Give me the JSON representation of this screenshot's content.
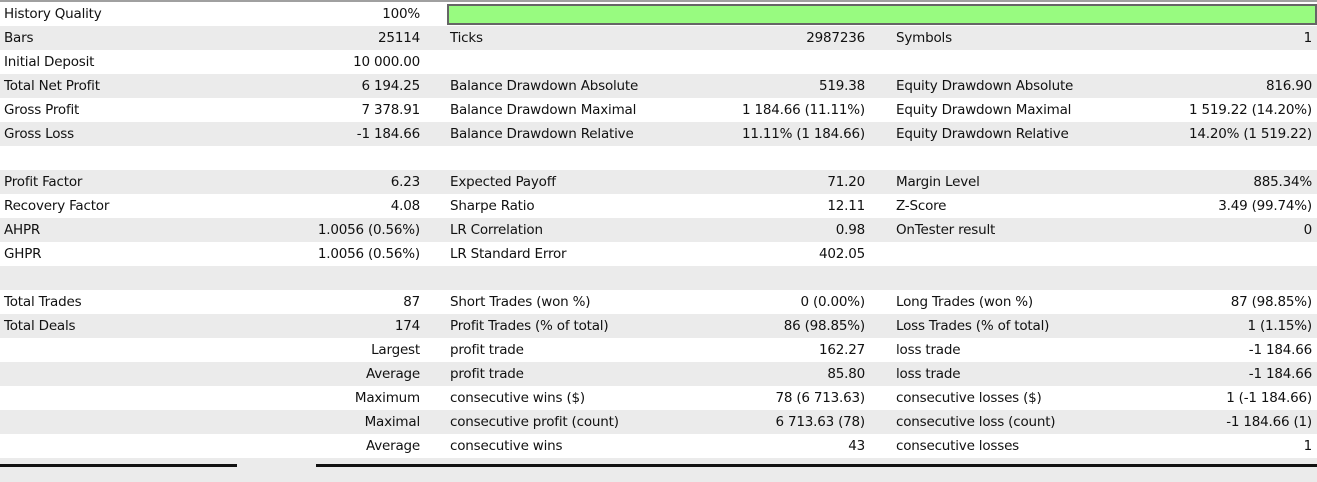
{
  "history_quality": {
    "label": "History Quality",
    "value": "100%",
    "fill_percent": 100,
    "bar_color": "#98fb80"
  },
  "rows": [
    {
      "l1": "Bars",
      "v1": "25114",
      "l2": "Ticks",
      "v2": "2987236",
      "l3": "Symbols",
      "v3": "1"
    },
    {
      "l1": "Initial Deposit",
      "v1": "10 000.00",
      "l2": "",
      "v2": "",
      "l3": "",
      "v3": ""
    },
    {
      "l1": "Total Net Profit",
      "v1": "6 194.25",
      "l2": "Balance Drawdown Absolute",
      "v2": "519.38",
      "l3": "Equity Drawdown Absolute",
      "v3": "816.90"
    },
    {
      "l1": "Gross Profit",
      "v1": "7 378.91",
      "l2": "Balance Drawdown Maximal",
      "v2": "1 184.66 (11.11%)",
      "l3": "Equity Drawdown Maximal",
      "v3": "1 519.22 (14.20%)"
    },
    {
      "l1": "Gross Loss",
      "v1": "-1 184.66",
      "l2": "Balance Drawdown Relative",
      "v2": "11.11% (1 184.66)",
      "l3": "Equity Drawdown Relative",
      "v3": "14.20% (1 519.22)"
    },
    {
      "l1": "",
      "v1": "",
      "l2": "",
      "v2": "",
      "l3": "",
      "v3": ""
    },
    {
      "l1": "Profit Factor",
      "v1": "6.23",
      "l2": "Expected Payoff",
      "v2": "71.20",
      "l3": "Margin Level",
      "v3": "885.34%"
    },
    {
      "l1": "Recovery Factor",
      "v1": "4.08",
      "l2": "Sharpe Ratio",
      "v2": "12.11",
      "l3": "Z-Score",
      "v3": "3.49 (99.74%)"
    },
    {
      "l1": "AHPR",
      "v1": "1.0056 (0.56%)",
      "l2": "LR Correlation",
      "v2": "0.98",
      "l3": "OnTester result",
      "v3": "0"
    },
    {
      "l1": "GHPR",
      "v1": "1.0056 (0.56%)",
      "l2": "LR Standard Error",
      "v2": "402.05",
      "l3": "",
      "v3": ""
    },
    {
      "l1": "",
      "v1": "",
      "l2": "",
      "v2": "",
      "l3": "",
      "v3": ""
    },
    {
      "l1": "Total Trades",
      "v1": "87",
      "l2": "Short Trades (won %)",
      "v2": "0 (0.00%)",
      "l3": "Long Trades (won %)",
      "v3": "87 (98.85%)"
    },
    {
      "l1": "Total Deals",
      "v1": "174",
      "l2": "Profit Trades (% of total)",
      "v2": "86 (98.85%)",
      "l3": "Loss Trades (% of total)",
      "v3": "1 (1.15%)"
    },
    {
      "l1": "",
      "v1": "Largest",
      "l2": "profit trade",
      "v2": "162.27",
      "l3": "loss trade",
      "v3": "-1 184.66"
    },
    {
      "l1": "",
      "v1": "Average",
      "l2": "profit trade",
      "v2": "85.80",
      "l3": "loss trade",
      "v3": "-1 184.66"
    },
    {
      "l1": "",
      "v1": "Maximum",
      "l2": "consecutive wins ($)",
      "v2": "78 (6 713.63)",
      "l3": "consecutive losses ($)",
      "v3": "1 (-1 184.66)"
    },
    {
      "l1": "",
      "v1": "Maximal",
      "l2": "consecutive profit (count)",
      "v2": "6 713.63 (78)",
      "l3": "consecutive loss (count)",
      "v3": "-1 184.66 (1)"
    },
    {
      "l1": "",
      "v1": "Average",
      "l2": "consecutive wins",
      "v2": "43",
      "l3": "consecutive losses",
      "v3": "1"
    },
    {
      "l1": "",
      "v1": "",
      "l2": "",
      "v2": "",
      "l3": "",
      "v3": ""
    }
  ]
}
